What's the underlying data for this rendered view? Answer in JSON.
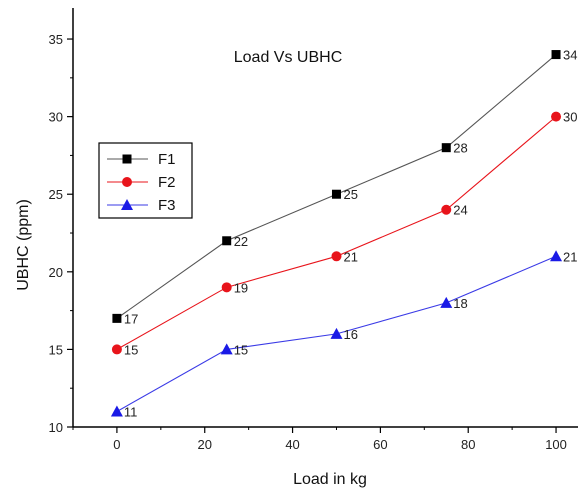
{
  "chart_data": {
    "type": "line",
    "title": "Load Vs UBHC",
    "xlabel": "Load in kg",
    "ylabel": "UBHC (ppm)",
    "xlim": [
      -10,
      105
    ],
    "ylim": [
      10,
      37
    ],
    "x_ticks": [
      0,
      20,
      40,
      60,
      80,
      100
    ],
    "y_ticks": [
      10,
      15,
      20,
      25,
      30,
      35
    ],
    "grid": false,
    "legend_position": "left",
    "x": [
      0,
      25,
      50,
      75,
      100
    ],
    "series": [
      {
        "name": "F1",
        "marker": "square",
        "color": "#000000",
        "line_color": "#555555",
        "values": [
          17,
          22,
          25,
          28,
          34
        ],
        "labels": [
          "17",
          "22",
          "25",
          "28",
          "34"
        ]
      },
      {
        "name": "F2",
        "marker": "circle",
        "color": "#e8141b",
        "line_color": "#e8141b",
        "values": [
          15,
          19,
          21,
          24,
          30
        ],
        "labels": [
          "15",
          "19",
          "21",
          "24",
          "30"
        ]
      },
      {
        "name": "F3",
        "marker": "triangle",
        "color": "#1a1ae6",
        "line_color": "#3a3ae6",
        "values": [
          11,
          15,
          16,
          18,
          21
        ],
        "labels": [
          "11",
          "15",
          "16",
          "18",
          "21"
        ]
      }
    ]
  }
}
